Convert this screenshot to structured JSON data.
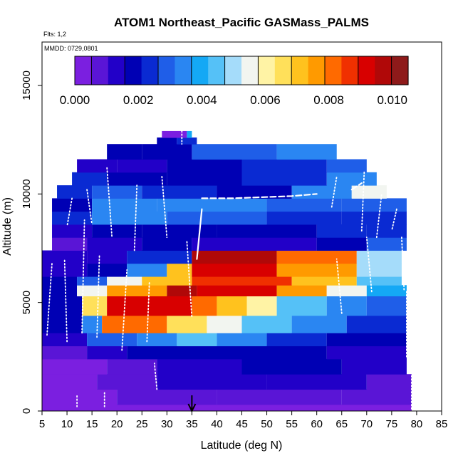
{
  "chart_data": {
    "type": "heatmap",
    "title": "ATOM1 Northeast_Pacific GASMass_PALMS",
    "subtitle_flights": "Flts: 1,2",
    "subtitle_dates": "MMDD: 0729,0801",
    "xlabel": "Latitude (deg N)",
    "ylabel": "Altitude (m)",
    "xlim": [
      5,
      85
    ],
    "ylim": [
      0,
      17000
    ],
    "x_ticks": [
      "5",
      "10",
      "15",
      "20",
      "25",
      "30",
      "35",
      "40",
      "45",
      "50",
      "55",
      "60",
      "65",
      "70",
      "75",
      "80",
      "85"
    ],
    "y_ticks": [
      "0",
      "5000",
      "10000",
      "15000"
    ],
    "colorbar": {
      "min": 0.0,
      "max": 0.0105,
      "tick_labels": [
        "0.000",
        "0.002",
        "0.004",
        "0.006",
        "0.008",
        "0.010"
      ],
      "colors": [
        "#7b1fe0",
        "#5a15d6",
        "#2200c8",
        "#0000b4",
        "#0a2ad2",
        "#1f5ee8",
        "#2a86f2",
        "#14a8f5",
        "#55c1f7",
        "#a5dcfa",
        "#f2f5f0",
        "#fff3a5",
        "#ffe05a",
        "#ffc21e",
        "#ff9a00",
        "#ff6a00",
        "#f03000",
        "#d80000",
        "#b00808",
        "#8e1a1a"
      ]
    },
    "marker_latitude": 35,
    "grid": false,
    "legend": "colorbar at top",
    "rows": [
      {
        "alt_bottom": 0,
        "alt_top": 300,
        "bands": [
          [
            5,
            79,
            0.0003
          ]
        ]
      },
      {
        "alt_bottom": 300,
        "alt_top": 1000,
        "bands": [
          [
            5,
            20,
            0.0003
          ],
          [
            20,
            40,
            0.0006
          ],
          [
            40,
            65,
            0.0008
          ],
          [
            65,
            79,
            0.0006
          ]
        ]
      },
      {
        "alt_bottom": 1000,
        "alt_top": 1700,
        "bands": [
          [
            5,
            16,
            0.0004
          ],
          [
            16,
            28,
            0.0007
          ],
          [
            28,
            50,
            0.0011
          ],
          [
            50,
            70,
            0.0013
          ],
          [
            70,
            79,
            0.0009
          ]
        ]
      },
      {
        "alt_bottom": 1700,
        "alt_top": 2400,
        "bands": [
          [
            5,
            18,
            0.0005
          ],
          [
            18,
            28,
            0.0009
          ],
          [
            28,
            45,
            0.0014
          ],
          [
            45,
            65,
            0.0016
          ],
          [
            65,
            78,
            0.0012
          ]
        ]
      },
      {
        "alt_bottom": 2400,
        "alt_top": 3000,
        "bands": [
          [
            5,
            14,
            0.0009
          ],
          [
            14,
            22,
            0.0014
          ],
          [
            22,
            45,
            0.0019
          ],
          [
            45,
            62,
            0.0016
          ],
          [
            62,
            78,
            0.0011
          ]
        ]
      },
      {
        "alt_bottom": 3000,
        "alt_top": 3600,
        "bands": [
          [
            5,
            14,
            0.0012
          ],
          [
            14,
            24,
            0.0028
          ],
          [
            24,
            32,
            0.0034
          ],
          [
            32,
            40,
            0.0045
          ],
          [
            40,
            50,
            0.0036
          ],
          [
            50,
            62,
            0.0026
          ],
          [
            62,
            78,
            0.0018
          ]
        ]
      },
      {
        "alt_bottom": 3600,
        "alt_top": 4400,
        "bands": [
          [
            5,
            13,
            0.0016
          ],
          [
            13,
            17,
            0.0034
          ],
          [
            17,
            30,
            0.0082
          ],
          [
            30,
            38,
            0.0064
          ],
          [
            38,
            45,
            0.0055
          ],
          [
            45,
            55,
            0.0044
          ],
          [
            55,
            66,
            0.0034
          ],
          [
            66,
            78,
            0.0025
          ]
        ]
      },
      {
        "alt_bottom": 4400,
        "alt_top": 5300,
        "bands": [
          [
            5,
            13,
            0.0019
          ],
          [
            13,
            18,
            0.0066
          ],
          [
            18,
            35,
            0.0094
          ],
          [
            35,
            40,
            0.0082
          ],
          [
            40,
            46,
            0.0072
          ],
          [
            46,
            52,
            0.006
          ],
          [
            52,
            62,
            0.0046
          ],
          [
            62,
            70,
            0.0036
          ],
          [
            70,
            78,
            0.0028
          ]
        ]
      },
      {
        "alt_bottom": 5300,
        "alt_top": 5800,
        "bands": [
          [
            5,
            12,
            0.0021
          ],
          [
            12,
            18,
            0.0055
          ],
          [
            18,
            30,
            0.0078
          ],
          [
            30,
            36,
            0.0098
          ],
          [
            36,
            52,
            0.0092
          ],
          [
            52,
            62,
            0.0074
          ],
          [
            62,
            70,
            0.0055
          ],
          [
            70,
            78,
            0.0038
          ]
        ]
      },
      {
        "alt_bottom": 5800,
        "alt_top": 6200,
        "bands": [
          [
            5,
            12,
            0.0017
          ],
          [
            12,
            18,
            0.0031
          ],
          [
            18,
            25,
            0.0054
          ],
          [
            25,
            35,
            0.0072
          ],
          [
            35,
            55,
            0.0088
          ],
          [
            55,
            68,
            0.007
          ],
          [
            68,
            77,
            0.0044
          ]
        ]
      },
      {
        "alt_bottom": 6200,
        "alt_top": 6800,
        "bands": [
          [
            5,
            14,
            0.0014
          ],
          [
            14,
            22,
            0.0018
          ],
          [
            22,
            30,
            0.0034
          ],
          [
            30,
            35,
            0.0072
          ],
          [
            35,
            52,
            0.0092
          ],
          [
            52,
            68,
            0.0076
          ],
          [
            68,
            77,
            0.0048
          ]
        ]
      },
      {
        "alt_bottom": 6800,
        "alt_top": 7400,
        "bands": [
          [
            5,
            14,
            0.0012
          ],
          [
            14,
            22,
            0.0015
          ],
          [
            22,
            35,
            0.0024
          ],
          [
            35,
            52,
            0.0098
          ],
          [
            52,
            68,
            0.0084
          ],
          [
            68,
            77,
            0.005
          ]
        ]
      },
      {
        "alt_bottom": 7400,
        "alt_top": 8000,
        "bands": [
          [
            7,
            14,
            0.0009
          ],
          [
            14,
            25,
            0.0011
          ],
          [
            25,
            35,
            0.0016
          ],
          [
            35,
            60,
            0.0014
          ],
          [
            60,
            70,
            0.0018
          ],
          [
            70,
            78,
            0.0028
          ]
        ]
      },
      {
        "alt_bottom": 8000,
        "alt_top": 8600,
        "bands": [
          [
            7,
            15,
            0.0013
          ],
          [
            15,
            25,
            0.0016
          ],
          [
            25,
            40,
            0.002
          ],
          [
            40,
            60,
            0.0018
          ],
          [
            60,
            70,
            0.0022
          ],
          [
            70,
            78,
            0.0026
          ]
        ]
      },
      {
        "alt_bottom": 8600,
        "alt_top": 9200,
        "bands": [
          [
            7,
            15,
            0.0026
          ],
          [
            15,
            30,
            0.0032
          ],
          [
            30,
            50,
            0.0029
          ],
          [
            50,
            65,
            0.0024
          ],
          [
            65,
            78,
            0.0022
          ]
        ]
      },
      {
        "alt_bottom": 9200,
        "alt_top": 9800,
        "bands": [
          [
            7,
            15,
            0.0019
          ],
          [
            15,
            28,
            0.0034
          ],
          [
            28,
            50,
            0.0036
          ],
          [
            50,
            65,
            0.003
          ],
          [
            65,
            78,
            0.0028
          ]
        ]
      },
      {
        "alt_bottom": 9800,
        "alt_top": 10400,
        "bands": [
          [
            8,
            15,
            0.0026
          ],
          [
            15,
            25,
            0.0031
          ],
          [
            25,
            40,
            0.0024
          ],
          [
            40,
            55,
            0.0018
          ],
          [
            55,
            67,
            0.0036
          ],
          [
            67,
            74,
            0.0053
          ]
        ]
      },
      {
        "alt_bottom": 10400,
        "alt_top": 11000,
        "bands": [
          [
            11,
            18,
            0.0024
          ],
          [
            18,
            30,
            0.0018
          ],
          [
            30,
            45,
            0.0021
          ],
          [
            45,
            62,
            0.0024
          ],
          [
            62,
            72,
            0.0032
          ]
        ]
      },
      {
        "alt_bottom": 11000,
        "alt_top": 11600,
        "bands": [
          [
            12,
            20,
            0.0015
          ],
          [
            20,
            30,
            0.0012
          ],
          [
            30,
            45,
            0.0018
          ],
          [
            45,
            62,
            0.0023
          ],
          [
            62,
            70,
            0.0029
          ]
        ]
      },
      {
        "alt_bottom": 11600,
        "alt_top": 12300,
        "bands": [
          [
            18,
            25,
            0.0016
          ],
          [
            25,
            35,
            0.0021
          ],
          [
            35,
            52,
            0.003
          ],
          [
            52,
            64,
            0.0034
          ]
        ]
      },
      {
        "alt_bottom": 12300,
        "alt_top": 12600,
        "bands": [
          [
            28,
            32,
            0.0019
          ],
          [
            32,
            36,
            0.0022
          ]
        ]
      },
      {
        "alt_bottom": 12600,
        "alt_top": 12900,
        "bands": [
          [
            29,
            34,
            0.0005
          ],
          [
            34,
            35,
            0.004
          ]
        ]
      }
    ],
    "flight_tracks": [
      {
        "points": [
          [
            6,
            3500
          ],
          [
            7,
            6800
          ]
        ],
        "style": "dotted"
      },
      {
        "points": [
          [
            10,
            3200
          ],
          [
            9.5,
            7000
          ]
        ],
        "style": "dotted"
      },
      {
        "points": [
          [
            11,
            9800
          ],
          [
            10,
            8500
          ]
        ],
        "style": "dotted"
      },
      {
        "points": [
          [
            13,
            3600
          ],
          [
            13.5,
            8800
          ]
        ],
        "style": "dotted"
      },
      {
        "points": [
          [
            14,
            10200
          ],
          [
            15,
            8600
          ]
        ],
        "style": "dotted"
      },
      {
        "points": [
          [
            16,
            3400
          ],
          [
            16.5,
            7200
          ]
        ],
        "style": "dotted"
      },
      {
        "points": [
          [
            18,
            11200
          ],
          [
            19,
            8000
          ]
        ],
        "style": "dotted"
      },
      {
        "points": [
          [
            21,
            2800
          ],
          [
            22,
            6500
          ]
        ],
        "style": "dotted"
      },
      {
        "points": [
          [
            24,
            10400
          ],
          [
            23.5,
            7400
          ]
        ],
        "style": "dotted"
      },
      {
        "points": [
          [
            26,
            3200
          ],
          [
            26.5,
            6000
          ]
        ],
        "style": "dotted"
      },
      {
        "points": [
          [
            28,
            1000
          ],
          [
            27.5,
            2200
          ]
        ],
        "style": "dotted"
      },
      {
        "points": [
          [
            29,
            10800
          ],
          [
            30,
            8000
          ]
        ],
        "style": "dotted"
      },
      {
        "points": [
          [
            33,
            12900
          ],
          [
            33,
            12300
          ]
        ],
        "style": "dotted"
      },
      {
        "points": [
          [
            34,
            7800
          ],
          [
            35,
            4300
          ]
        ],
        "style": "dotted"
      },
      {
        "points": [
          [
            36,
            7000
          ],
          [
            37,
            9300
          ]
        ],
        "style": "solid"
      },
      {
        "points": [
          [
            37,
            9800
          ],
          [
            43,
            9800
          ],
          [
            55,
            9900
          ],
          [
            60,
            10000
          ]
        ],
        "style": "dashed"
      },
      {
        "points": [
          [
            63,
            9400
          ],
          [
            64,
            10800
          ]
        ],
        "style": "dotted"
      },
      {
        "points": [
          [
            65,
            4500
          ],
          [
            64,
            7000
          ]
        ],
        "style": "dotted"
      },
      {
        "points": [
          [
            67,
            10200
          ],
          [
            69,
            10500
          ]
        ],
        "style": "dashed"
      },
      {
        "points": [
          [
            69,
            8300
          ],
          [
            69.5,
            11000
          ]
        ],
        "style": "dotted"
      },
      {
        "points": [
          [
            71,
            5500
          ],
          [
            70,
            8000
          ]
        ],
        "style": "dotted"
      },
      {
        "points": [
          [
            72,
            8000
          ],
          [
            73,
            10000
          ]
        ],
        "style": "dotted"
      },
      {
        "points": [
          [
            76,
            9300
          ],
          [
            75,
            8300
          ]
        ],
        "style": "dotted"
      },
      {
        "points": [
          [
            77,
            8000
          ],
          [
            77.5,
            5500
          ]
        ],
        "style": "dotted"
      },
      {
        "points": [
          [
            78,
            2500
          ],
          [
            78,
            5500
          ]
        ],
        "style": "dotted"
      },
      {
        "points": [
          [
            12,
            200
          ],
          [
            12,
            700
          ]
        ],
        "style": "dotted"
      },
      {
        "points": [
          [
            17.5,
            200
          ],
          [
            17.5,
            900
          ]
        ],
        "style": "dotted"
      },
      {
        "points": [
          [
            79,
            100
          ],
          [
            79,
            2300
          ]
        ],
        "style": "dotted"
      }
    ]
  }
}
